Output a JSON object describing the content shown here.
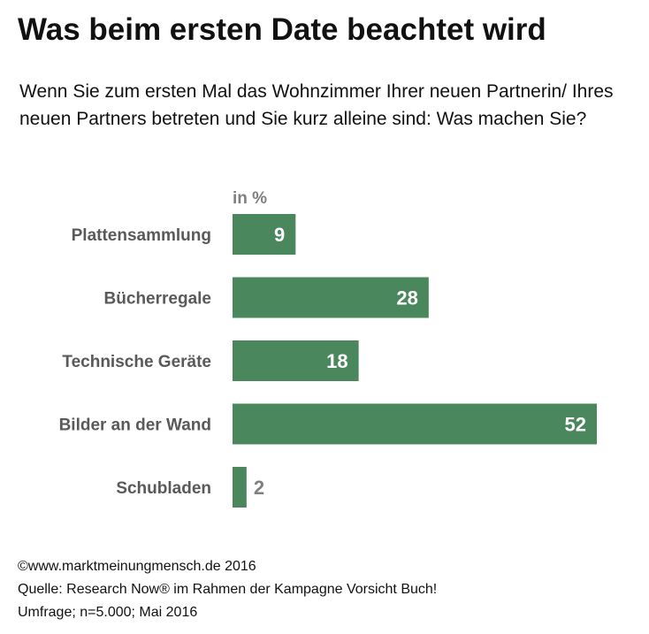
{
  "title": "Was beim ersten Date beachtet wird",
  "subtitle": "Wenn Sie zum ersten Mal das Wohnzimmer Ihrer neuen Partnerin/ Ihres neuen Partners betreten und Sie kurz alleine sind: Was machen Sie?",
  "footer": {
    "copyright": "©www.marktmeinungmensch.de 2016",
    "source": "Quelle:  Research Now® im Rahmen der Kampagne Vorsicht Buch!",
    "survey": "Umfrage; n=5.000; Mai 2016"
  },
  "colors": {
    "bar": "#4a875c",
    "label": "#595959",
    "value_outside": "#7f7f7f"
  },
  "chart_data": {
    "type": "bar",
    "orientation": "horizontal",
    "unit_label": "in %",
    "categories": [
      "Plattensammlung",
      "Bücherregale",
      "Technische Geräte",
      "Bilder an der Wand",
      "Schubladen"
    ],
    "values": [
      9,
      28,
      18,
      52,
      2
    ],
    "xlim": [
      0,
      52
    ],
    "grid": false,
    "legend": "none"
  }
}
